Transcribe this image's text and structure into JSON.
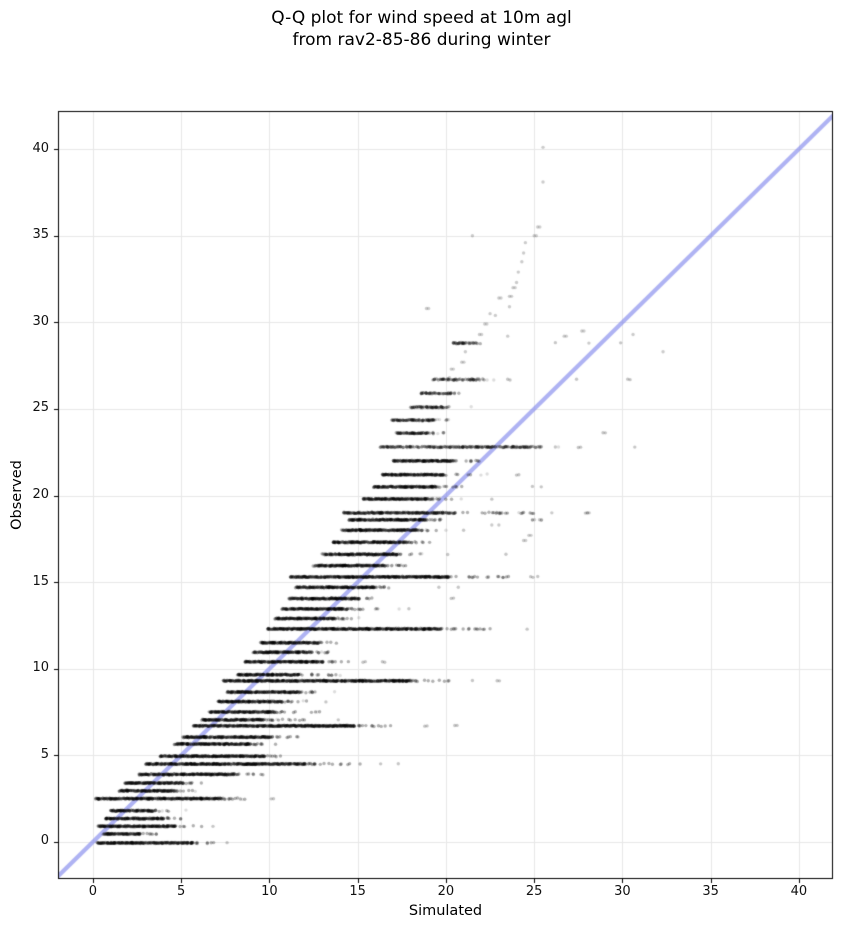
{
  "chart_data": {
    "type": "scatter",
    "title_line1": "Q-Q plot for wind speed at 10m agl",
    "title_line2": "from rav2-85-86 during winter",
    "xlabel": "Simulated",
    "ylabel": "Observed",
    "xlim": [
      -1.98,
      41.93
    ],
    "ylim": [
      -2.14,
      42.2
    ],
    "xticks": [
      0,
      5,
      10,
      15,
      20,
      25,
      30,
      35,
      40
    ],
    "yticks": [
      0,
      5,
      10,
      15,
      20,
      25,
      30,
      35,
      40
    ],
    "grid": true,
    "grid_color": "#e8e8e8",
    "spine_color": "#000000",
    "identity_line": {
      "color": "#7a80eb",
      "alpha": 0.6,
      "width": 4.2,
      "from": [
        -3,
        -3
      ],
      "to": [
        43,
        43
      ]
    },
    "marker": {
      "color": "#000000",
      "radius": 1.7,
      "alpha": 0.3,
      "faint_alpha": 0.22
    },
    "bands": [
      {
        "y": -0.06,
        "x0": 0.25,
        "x1": 5.6,
        "t": 7.0,
        "far": [
          7.6
        ]
      },
      {
        "y": 0.46,
        "x0": 0.6,
        "x1": 2.7,
        "t": 3.8,
        "far": []
      },
      {
        "y": 0.9,
        "x0": 0.3,
        "x1": 4.6,
        "t": 6.2,
        "far": [
          6.8
        ]
      },
      {
        "y": 1.35,
        "x0": 0.7,
        "x1": 4.0,
        "t": 5.3,
        "far": []
      },
      {
        "y": 1.8,
        "x0": 1.0,
        "x1": 3.4,
        "t": 4.4,
        "far": []
      },
      {
        "y": 2.5,
        "x0": 0.15,
        "x1": 7.3,
        "t": 9.0,
        "far": [
          10.1
        ]
      },
      {
        "y": 2.95,
        "x0": 1.5,
        "x1": 4.6,
        "t": 5.8,
        "far": []
      },
      {
        "y": 3.4,
        "x0": 1.8,
        "x1": 5.1,
        "t": 6.2,
        "far": []
      },
      {
        "y": 3.9,
        "x0": 2.6,
        "x1": 8.0,
        "t": 9.8,
        "far": []
      },
      {
        "y": 4.5,
        "x0": 3.0,
        "x1": 12.0,
        "t": 15.3,
        "far": [
          16.3,
          17.3
        ]
      },
      {
        "y": 4.95,
        "x0": 3.8,
        "x1": 9.7,
        "t": 10.8,
        "far": []
      },
      {
        "y": 5.65,
        "x0": 4.6,
        "x1": 8.9,
        "t": 10.6,
        "far": []
      },
      {
        "y": 6.05,
        "x0": 5.1,
        "x1": 10.1,
        "t": 11.7,
        "far": []
      },
      {
        "y": 6.7,
        "x0": 5.7,
        "x1": 14.8,
        "t": 17.0,
        "far": [
          18.8,
          20.5
        ]
      },
      {
        "y": 7.05,
        "x0": 6.2,
        "x1": 9.7,
        "t": 12.0,
        "far": [
          13.9
        ]
      },
      {
        "y": 7.5,
        "x0": 6.6,
        "x1": 10.1,
        "t": 13.0,
        "far": []
      },
      {
        "y": 8.1,
        "x0": 7.1,
        "x1": 10.7,
        "t": 12.3,
        "far": [
          13.2
        ]
      },
      {
        "y": 8.65,
        "x0": 7.6,
        "x1": 11.7,
        "t": 12.9,
        "far": []
      },
      {
        "y": 9.3,
        "x0": 7.4,
        "x1": 17.9,
        "t": 20.4,
        "far": [
          21.5,
          22.9
        ]
      },
      {
        "y": 9.65,
        "x0": 8.2,
        "x1": 11.6,
        "t": 14.7,
        "far": []
      },
      {
        "y": 10.4,
        "x0": 8.6,
        "x1": 13.0,
        "t": 14.6,
        "far": [
          15.3,
          16.4
        ]
      },
      {
        "y": 10.95,
        "x0": 9.1,
        "x1": 12.4,
        "t": 13.6,
        "far": []
      },
      {
        "y": 11.5,
        "x0": 9.5,
        "x1": 12.7,
        "t": 14.0,
        "far": []
      },
      {
        "y": 12.3,
        "x0": 9.9,
        "x1": 19.6,
        "t": 23.0,
        "far": [
          24.6
        ]
      },
      {
        "y": 12.9,
        "x0": 10.3,
        "x1": 13.7,
        "t": 15.0,
        "far": []
      },
      {
        "y": 13.45,
        "x0": 10.7,
        "x1": 14.4,
        "t": 16.2,
        "far": [
          17.9
        ]
      },
      {
        "y": 14.05,
        "x0": 11.1,
        "x1": 15.0,
        "t": 16.4,
        "far": [
          20.3
        ]
      },
      {
        "y": 14.7,
        "x0": 11.5,
        "x1": 16.0,
        "t": 17.0,
        "far": [
          19.6,
          20.7
        ]
      },
      {
        "y": 15.3,
        "x0": 11.2,
        "x1": 20.1,
        "t": 23.6,
        "far": [
          24.8,
          25.2
        ]
      },
      {
        "y": 15.95,
        "x0": 12.5,
        "x1": 16.6,
        "t": 17.8,
        "far": []
      },
      {
        "y": 16.6,
        "x0": 13.0,
        "x1": 17.2,
        "t": 18.6,
        "far": [
          20.1,
          23.4
        ]
      },
      {
        "y": 17.3,
        "x0": 13.6,
        "x1": 17.8,
        "t": 19.2,
        "far": []
      },
      {
        "y": 18.0,
        "x0": 14.1,
        "x1": 18.3,
        "t": 19.8,
        "far": [
          21.0
        ]
      },
      {
        "y": 18.6,
        "x0": 14.5,
        "x1": 18.9,
        "t": 20.0,
        "far": [
          24.9,
          25.4
        ]
      },
      {
        "y": 19.0,
        "x0": 14.2,
        "x1": 20.5,
        "t": 25.6,
        "d": 0.8,
        "far": [
          27.9
        ]
      },
      {
        "y": 19.8,
        "x0": 15.3,
        "x1": 19.0,
        "t": 20.6,
        "far": [
          22.6
        ]
      },
      {
        "y": 20.5,
        "x0": 15.9,
        "x1": 19.4,
        "t": 21.0,
        "far": [
          24.9,
          25.4
        ]
      },
      {
        "y": 21.2,
        "x0": 16.4,
        "x1": 19.8,
        "t": 21.4,
        "far": [
          24.0
        ]
      },
      {
        "y": 22.0,
        "x0": 17.0,
        "x1": 20.4,
        "t": 22.0,
        "far": []
      },
      {
        "y": 22.8,
        "x0": 16.3,
        "x1": 25.4,
        "t": 25.4,
        "d": 0.55,
        "far": [
          26.2,
          27.5,
          30.7
        ]
      },
      {
        "y": 23.6,
        "x0": 17.2,
        "x1": 19.0,
        "t": 20.0,
        "d": 0.8,
        "far": [
          28.9
        ]
      },
      {
        "y": 24.35,
        "x0": 16.9,
        "x1": 19.3,
        "t": 20.2,
        "d": 0.7,
        "far": []
      },
      {
        "y": 25.1,
        "x0": 18.0,
        "x1": 19.8,
        "t": 20.6,
        "d": 0.7,
        "far": []
      },
      {
        "y": 25.9,
        "x0": 18.6,
        "x1": 20.3,
        "t": 21.0,
        "d": 0.6,
        "far": []
      },
      {
        "y": 26.7,
        "x0": 19.3,
        "x1": 21.9,
        "t": 22.4,
        "d": 0.5,
        "far": [
          23.5,
          27.4,
          30.3
        ]
      },
      {
        "y": 28.8,
        "x0": 20.4,
        "x1": 21.6,
        "t": 22.0,
        "d": 0.6,
        "far": [
          26.2,
          29.9
        ]
      }
    ],
    "extra_points": [
      [
        20.2,
        26.8
      ],
      [
        20.3,
        27.3
      ],
      [
        20.9,
        27.7
      ],
      [
        21.1,
        28.3
      ],
      [
        21.0,
        28.8
      ],
      [
        21.7,
        28.8
      ],
      [
        21.9,
        29.3
      ],
      [
        22.2,
        29.9
      ],
      [
        22.5,
        30.5
      ],
      [
        22.8,
        30.4
      ],
      [
        23.0,
        31.4
      ],
      [
        23.6,
        30.9
      ],
      [
        23.6,
        31.5
      ],
      [
        23.8,
        32.0
      ],
      [
        24.0,
        32.3
      ],
      [
        24.1,
        32.9
      ],
      [
        24.3,
        33.5
      ],
      [
        24.4,
        34.0
      ],
      [
        24.5,
        34.6
      ],
      [
        25.0,
        35.0
      ],
      [
        25.2,
        35.5
      ],
      [
        25.5,
        38.1
      ],
      [
        25.5,
        40.1
      ],
      [
        21.5,
        35.0
      ],
      [
        18.9,
        30.8
      ],
      [
        26.7,
        29.2
      ],
      [
        27.7,
        29.5
      ],
      [
        30.6,
        29.3
      ],
      [
        28.1,
        28.8
      ],
      [
        32.3,
        28.3
      ],
      [
        23.5,
        29.2
      ],
      [
        22.6,
        18.3
      ],
      [
        23.0,
        18.3
      ],
      [
        24.4,
        17.4
      ],
      [
        24.7,
        17.7
      ],
      [
        24.9,
        18.6
      ],
      [
        25.3,
        18.6
      ],
      [
        26.0,
        19.0
      ],
      [
        28.0,
        19.0
      ]
    ]
  }
}
